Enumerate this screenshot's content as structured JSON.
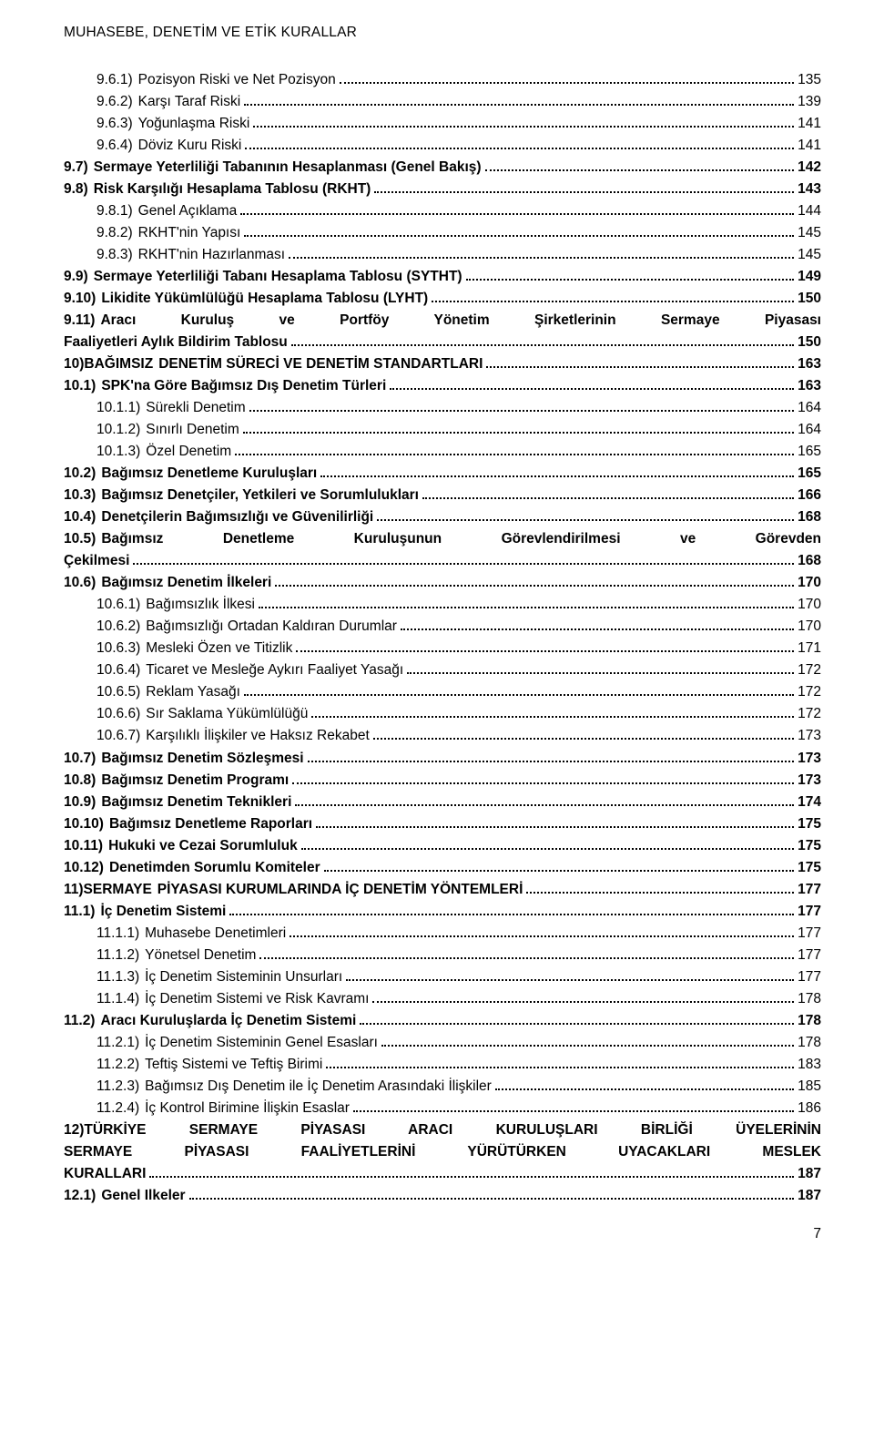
{
  "header": "MUHASEBE, DENETİM VE ETİK KURALLAR",
  "page_number": "7",
  "entries": [
    {
      "num": "9.6.1)",
      "title": "Pozisyon Riski ve Net Pozisyon",
      "page": "135",
      "bold": false,
      "indent": 1
    },
    {
      "num": "9.6.2)",
      "title": "Karşı Taraf Riski",
      "page": "139",
      "bold": false,
      "indent": 1
    },
    {
      "num": "9.6.3)",
      "title": "Yoğunlaşma Riski",
      "page": "141",
      "bold": false,
      "indent": 1
    },
    {
      "num": "9.6.4)",
      "title": "Döviz Kuru Riski",
      "page": "141",
      "bold": false,
      "indent": 1
    },
    {
      "num": "9.7)",
      "title": "Sermaye Yeterliliği Tabanının Hesaplanması (Genel Bakış)",
      "page": "142",
      "bold": true,
      "indent": 0
    },
    {
      "num": "9.8)",
      "title": "Risk Karşılığı Hesaplama Tablosu (RKHT)",
      "page": "143",
      "bold": true,
      "indent": 0
    },
    {
      "num": "9.8.1)",
      "title": "Genel Açıklama",
      "page": "144",
      "bold": false,
      "indent": 1
    },
    {
      "num": "9.8.2)",
      "title": "RKHT'nin Yapısı",
      "page": "145",
      "bold": false,
      "indent": 1
    },
    {
      "num": "9.8.3)",
      "title": "RKHT'nin Hazırlanması",
      "page": "145",
      "bold": false,
      "indent": 1
    },
    {
      "num": "9.9)",
      "title": "Sermaye Yeterliliği Tabanı Hesaplama Tablosu (SYTHT)",
      "page": "149",
      "bold": true,
      "indent": 0
    },
    {
      "num": "9.10)",
      "title": "Likidite Yükümlülüğü Hesaplama Tablosu (LYHT)",
      "page": "150",
      "bold": true,
      "indent": 0
    },
    {
      "num": "9.11)",
      "title_lines": [
        "Aracı Kuruluş ve Portföy Yönetim Şirketlerinin Sermaye Piyasası",
        "Faaliyetleri Aylık Bildirim Tablosu"
      ],
      "page": "150",
      "bold": true,
      "indent": 0,
      "multi": true,
      "justify": true
    },
    {
      "num": "10)BAĞIMSIZ",
      "title": "DENETİM SÜRECİ VE DENETİM STANDARTLARI",
      "page": "163",
      "bold": true,
      "indent": 0,
      "nospace": true
    },
    {
      "num": "10.1)",
      "title": "SPK'na Göre Bağımsız Dış Denetim Türleri",
      "page": "163",
      "bold": true,
      "indent": 0
    },
    {
      "num": "10.1.1)",
      "title": "Sürekli Denetim",
      "page": "164",
      "bold": false,
      "indent": 1
    },
    {
      "num": "10.1.2)",
      "title": "Sınırlı Denetim",
      "page": "164",
      "bold": false,
      "indent": 1
    },
    {
      "num": "10.1.3)",
      "title": "Özel Denetim",
      "page": "165",
      "bold": false,
      "indent": 1
    },
    {
      "num": "10.2)",
      "title": "Bağımsız Denetleme Kuruluşları",
      "page": "165",
      "bold": true,
      "indent": 0
    },
    {
      "num": "10.3)",
      "title": "Bağımsız Denetçiler, Yetkileri ve Sorumlulukları",
      "page": "166",
      "bold": true,
      "indent": 0
    },
    {
      "num": "10.4)",
      "title": "Denetçilerin Bağımsızlığı ve Güvenilirliği",
      "page": "168",
      "bold": true,
      "indent": 0
    },
    {
      "num": "10.5)",
      "title_lines": [
        "Bağımsız Denetleme Kuruluşunun Görevlendirilmesi ve Görevden",
        "Çekilmesi"
      ],
      "page": "168",
      "bold": true,
      "indent": 0,
      "multi": true,
      "justify": true
    },
    {
      "num": "10.6)",
      "title": "Bağımsız Denetim İlkeleri",
      "page": "170",
      "bold": true,
      "indent": 0
    },
    {
      "num": "10.6.1)",
      "title": "Bağımsızlık İlkesi",
      "page": "170",
      "bold": false,
      "indent": 1
    },
    {
      "num": "10.6.2)",
      "title": "Bağımsızlığı Ortadan Kaldıran Durumlar",
      "page": "170",
      "bold": false,
      "indent": 1
    },
    {
      "num": "10.6.3)",
      "title": "Mesleki Özen ve Titizlik",
      "page": "171",
      "bold": false,
      "indent": 1
    },
    {
      "num": "10.6.4)",
      "title": "Ticaret ve Mesleğe Aykırı Faaliyet Yasağı",
      "page": "172",
      "bold": false,
      "indent": 1
    },
    {
      "num": "10.6.5)",
      "title": "Reklam Yasağı",
      "page": "172",
      "bold": false,
      "indent": 1
    },
    {
      "num": "10.6.6)",
      "title": "Sır Saklama Yükümlülüğü",
      "page": "172",
      "bold": false,
      "indent": 1
    },
    {
      "num": "10.6.7)",
      "title": "Karşılıklı İlişkiler ve Haksız Rekabet",
      "page": "173",
      "bold": false,
      "indent": 1
    },
    {
      "num": "10.7)",
      "title": "Bağımsız Denetim Sözleşmesi",
      "page": "173",
      "bold": true,
      "indent": 0
    },
    {
      "num": "10.8)",
      "title": "Bağımsız Denetim Programı",
      "page": "173",
      "bold": true,
      "indent": 0
    },
    {
      "num": "10.9)",
      "title": "Bağımsız Denetim Teknikleri",
      "page": "174",
      "bold": true,
      "indent": 0
    },
    {
      "num": "10.10)",
      "title": "Bağımsız Denetleme Raporları",
      "page": "175",
      "bold": true,
      "indent": 0
    },
    {
      "num": "10.11)",
      "title": "Hukuki ve Cezai Sorumluluk",
      "page": "175",
      "bold": true,
      "indent": 0
    },
    {
      "num": "10.12)",
      "title": "Denetimden Sorumlu Komiteler",
      "page": "175",
      "bold": true,
      "indent": 0
    },
    {
      "num": "11)SERMAYE",
      "title": "PİYASASI KURUMLARINDA İÇ DENETİM YÖNTEMLERİ",
      "page": "177",
      "bold": true,
      "indent": 0,
      "nospace": true
    },
    {
      "num": "11.1)",
      "title": "İç Denetim Sistemi",
      "page": "177",
      "bold": true,
      "indent": 0
    },
    {
      "num": "11.1.1)",
      "title": "Muhasebe Denetimleri",
      "page": "177",
      "bold": false,
      "indent": 1
    },
    {
      "num": "11.1.2)",
      "title": "Yönetsel Denetim",
      "page": "177",
      "bold": false,
      "indent": 1
    },
    {
      "num": "11.1.3)",
      "title": "İç Denetim Sisteminin Unsurları",
      "page": "177",
      "bold": false,
      "indent": 1
    },
    {
      "num": "11.1.4)",
      "title": "İç Denetim Sistemi ve Risk Kavramı",
      "page": "178",
      "bold": false,
      "indent": 1
    },
    {
      "num": "11.2)",
      "title": "Aracı Kuruluşlarda İç Denetim Sistemi",
      "page": "178",
      "bold": true,
      "indent": 0
    },
    {
      "num": "11.2.1)",
      "title": "İç Denetim Sisteminin Genel Esasları",
      "page": "178",
      "bold": false,
      "indent": 1
    },
    {
      "num": "11.2.2)",
      "title": "Teftiş  Sistemi ve Teftiş Birimi",
      "page": "183",
      "bold": false,
      "indent": 1
    },
    {
      "num": "11.2.3)",
      "title": "Bağımsız Dış Denetim ile İç Denetim Arasındaki İlişkiler",
      "page": "185",
      "bold": false,
      "indent": 1
    },
    {
      "num": "11.2.4)",
      "title": "İç Kontrol Birimine İlişkin Esaslar",
      "page": "186",
      "bold": false,
      "indent": 1
    },
    {
      "num": "",
      "title_lines": [
        "12)TÜRKİYE SERMAYE PİYASASI ARACI KURULUŞLARI BİRLİĞİ ÜYELERİNİN",
        "SERMAYE PİYASASI FAALİYETLERİNİ YÜRÜTÜRKEN UYACAKLARI MESLEK",
        "KURALLARI"
      ],
      "page": "187",
      "bold": true,
      "indent": 0,
      "multi": true,
      "justify": true,
      "nonum": true
    },
    {
      "num": "12.1)",
      "title": "Genel Ilkeler",
      "page": "187",
      "bold": true,
      "indent": 0
    }
  ]
}
